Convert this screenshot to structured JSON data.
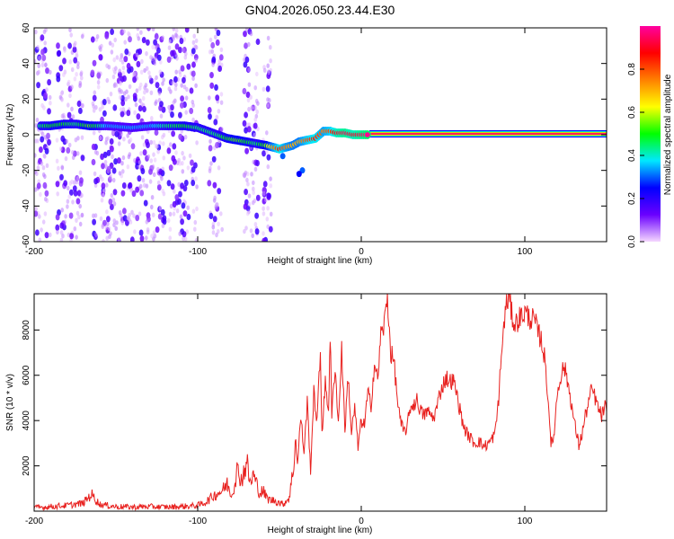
{
  "figure": {
    "title": "GN04.2026.050.23.44.E30"
  },
  "colors": {
    "snr_line": "#e8201e",
    "axis": "#000000",
    "background": "#ffffff"
  },
  "chart_data": [
    {
      "type": "heatmap",
      "name": "spectrogram",
      "xlabel": "Height of straight line (km)",
      "ylabel": "Frequency (Hz)",
      "xlim": [
        -200,
        150
      ],
      "ylim": [
        -60,
        60
      ],
      "x_ticks": [
        -200,
        -100,
        0,
        100
      ],
      "y_ticks": [
        -60,
        -40,
        -20,
        0,
        20,
        40,
        60
      ],
      "colorbar": {
        "label": "Normalized spectral amplitude",
        "range": [
          0,
          1
        ],
        "ticks": [
          0.0,
          0.2,
          0.4,
          0.6,
          0.8
        ],
        "colormap": [
          "#f5d7ff",
          "#6a00ff",
          "#0000ff",
          "#00e8ff",
          "#00ff00",
          "#ffff00",
          "#ff8000",
          "#ff0000",
          "#ff00a0"
        ]
      },
      "noise_bands_x": [
        [
          -200,
          -190
        ],
        [
          -186,
          -170
        ],
        [
          -165,
          -150
        ],
        [
          -150,
          -120
        ],
        [
          -118,
          -100
        ],
        [
          -93,
          -85
        ],
        [
          -72,
          -63
        ],
        [
          -60,
          -55
        ]
      ],
      "ridge": [
        {
          "x": -196,
          "freq": 5,
          "amp": 0.45
        },
        {
          "x": -190,
          "freq": 5,
          "amp": 0.5
        },
        {
          "x": -182,
          "freq": 6,
          "amp": 0.5
        },
        {
          "x": -174,
          "freq": 6,
          "amp": 0.45
        },
        {
          "x": -166,
          "freq": 5,
          "amp": 0.55
        },
        {
          "x": -160,
          "freq": 5,
          "amp": 0.45
        },
        {
          "x": -155,
          "freq": 5,
          "amp": 0.35
        },
        {
          "x": -140,
          "freq": 4,
          "amp": 0.35
        },
        {
          "x": -128,
          "freq": 5,
          "amp": 0.35
        },
        {
          "x": -118,
          "freq": 5,
          "amp": 0.45
        },
        {
          "x": -108,
          "freq": 5,
          "amp": 0.5
        },
        {
          "x": -100,
          "freq": 4,
          "amp": 0.45
        },
        {
          "x": -94,
          "freq": 2,
          "amp": 0.45
        },
        {
          "x": -88,
          "freq": 0,
          "amp": 0.45
        },
        {
          "x": -82,
          "freq": -2,
          "amp": 0.5
        },
        {
          "x": -76,
          "freq": -3,
          "amp": 0.55
        },
        {
          "x": -70,
          "freq": -4,
          "amp": 0.5
        },
        {
          "x": -64,
          "freq": -5,
          "amp": 0.45
        },
        {
          "x": -58,
          "freq": -6,
          "amp": 0.55
        },
        {
          "x": -54,
          "freq": -7,
          "amp": 0.7
        },
        {
          "x": -50,
          "freq": -8,
          "amp": 0.85
        },
        {
          "x": -46,
          "freq": -7,
          "amp": 0.75
        },
        {
          "x": -42,
          "freq": -6,
          "amp": 0.7
        },
        {
          "x": -38,
          "freq": -4,
          "amp": 0.7
        },
        {
          "x": -33,
          "freq": -3,
          "amp": 0.8
        },
        {
          "x": -28,
          "freq": -2,
          "amp": 0.85
        },
        {
          "x": -23,
          "freq": 2,
          "amp": 0.75
        },
        {
          "x": -19,
          "freq": 2,
          "amp": 0.8
        },
        {
          "x": -15,
          "freq": 1,
          "amp": 0.9
        },
        {
          "x": -10,
          "freq": 1,
          "amp": 0.95
        },
        {
          "x": -5,
          "freq": 0,
          "amp": 0.9
        },
        {
          "x": 0,
          "freq": 0,
          "amp": 0.95
        },
        {
          "x": 5,
          "freq": 0,
          "amp": 1.0
        }
      ],
      "ridge_branch": [
        {
          "x": -36,
          "freq": -20,
          "amp": 0.3
        },
        {
          "x": -38,
          "freq": -22,
          "amp": 0.25
        },
        {
          "x": -48,
          "freq": -12,
          "amp": 0.3
        }
      ],
      "steady_tone": {
        "x_start": 5,
        "x_end": 150,
        "freq": 0,
        "amp": 1.0
      }
    },
    {
      "type": "line",
      "name": "snr",
      "xlabel": "Height of straight line (km)",
      "ylabel": "SNR (10 * v/v)",
      "xlim": [
        -200,
        150
      ],
      "ylim": [
        0,
        9600
      ],
      "x_ticks": [
        -200,
        -100,
        0,
        100
      ],
      "y_ticks": [
        2000,
        4000,
        6000,
        8000
      ],
      "series": [
        {
          "name": "SNR",
          "points": [
            [
              -200,
              150
            ],
            [
              -190,
              200
            ],
            [
              -180,
              250
            ],
            [
              -170,
              350
            ],
            [
              -165,
              750
            ],
            [
              -160,
              300
            ],
            [
              -150,
              200
            ],
            [
              -140,
              180
            ],
            [
              -130,
              200
            ],
            [
              -120,
              180
            ],
            [
              -110,
              200
            ],
            [
              -100,
              250
            ],
            [
              -95,
              400
            ],
            [
              -90,
              700
            ],
            [
              -85,
              900
            ],
            [
              -82,
              1200
            ],
            [
              -79,
              700
            ],
            [
              -76,
              1800
            ],
            [
              -73,
              1400
            ],
            [
              -70,
              2200
            ],
            [
              -68,
              1200
            ],
            [
              -66,
              1600
            ],
            [
              -62,
              800
            ],
            [
              -60,
              900
            ],
            [
              -58,
              600
            ],
            [
              -56,
              500
            ],
            [
              -52,
              450
            ],
            [
              -48,
              300
            ],
            [
              -44,
              600
            ],
            [
              -42,
              1600
            ],
            [
              -40,
              3200
            ],
            [
              -39,
              2000
            ],
            [
              -37,
              4200
            ],
            [
              -35,
              2600
            ],
            [
              -33,
              4800
            ],
            [
              -31,
              1800
            ],
            [
              -29,
              5200
            ],
            [
              -27,
              4000
            ],
            [
              -25,
              7000
            ],
            [
              -24,
              3500
            ],
            [
              -22,
              5600
            ],
            [
              -20,
              4500
            ],
            [
              -19,
              7800
            ],
            [
              -18,
              4200
            ],
            [
              -16,
              6500
            ],
            [
              -14,
              3800
            ],
            [
              -12,
              7200
            ],
            [
              -10,
              3600
            ],
            [
              -8,
              6000
            ],
            [
              -6,
              3400
            ],
            [
              -4,
              4600
            ],
            [
              -2,
              2800
            ],
            [
              0,
              4000
            ],
            [
              2,
              3800
            ],
            [
              4,
              5200
            ],
            [
              6,
              4700
            ],
            [
              8,
              6500
            ],
            [
              10,
              5800
            ],
            [
              12,
              7800
            ],
            [
              14,
              8200
            ],
            [
              16,
              9500
            ],
            [
              18,
              7000
            ],
            [
              20,
              6600
            ],
            [
              22,
              5000
            ],
            [
              24,
              3900
            ],
            [
              26,
              3500
            ],
            [
              28,
              3700
            ],
            [
              30,
              4600
            ],
            [
              32,
              4700
            ],
            [
              34,
              4900
            ],
            [
              36,
              4500
            ],
            [
              38,
              4200
            ],
            [
              40,
              4400
            ],
            [
              42,
              4300
            ],
            [
              44,
              4100
            ],
            [
              46,
              4500
            ],
            [
              48,
              5200
            ],
            [
              50,
              5600
            ],
            [
              52,
              5900
            ],
            [
              54,
              5700
            ],
            [
              56,
              5800
            ],
            [
              58,
              5300
            ],
            [
              60,
              4600
            ],
            [
              62,
              3900
            ],
            [
              64,
              3500
            ],
            [
              66,
              3300
            ],
            [
              68,
              3100
            ],
            [
              70,
              3000
            ],
            [
              72,
              3100
            ],
            [
              74,
              2900
            ],
            [
              76,
              2900
            ],
            [
              78,
              3000
            ],
            [
              80,
              3200
            ],
            [
              82,
              3500
            ],
            [
              84,
              5000
            ],
            [
              86,
              7200
            ],
            [
              88,
              8800
            ],
            [
              90,
              9500
            ],
            [
              92,
              8700
            ],
            [
              94,
              8200
            ],
            [
              96,
              8500
            ],
            [
              98,
              8600
            ],
            [
              100,
              8800
            ],
            [
              102,
              8600
            ],
            [
              104,
              8500
            ],
            [
              106,
              8400
            ],
            [
              108,
              7900
            ],
            [
              110,
              7600
            ],
            [
              112,
              6800
            ],
            [
              114,
              5200
            ],
            [
              116,
              3100
            ],
            [
              117,
              2900
            ],
            [
              118,
              3600
            ],
            [
              120,
              5300
            ],
            [
              122,
              6000
            ],
            [
              124,
              6400
            ],
            [
              126,
              5800
            ],
            [
              128,
              5000
            ],
            [
              130,
              4000
            ],
            [
              132,
              3300
            ],
            [
              133,
              2900
            ],
            [
              135,
              3400
            ],
            [
              137,
              4200
            ],
            [
              139,
              4800
            ],
            [
              141,
              5400
            ],
            [
              143,
              5000
            ],
            [
              145,
              4500
            ],
            [
              147,
              4200
            ],
            [
              149,
              4600
            ],
            [
              150,
              4400
            ]
          ]
        }
      ]
    }
  ]
}
